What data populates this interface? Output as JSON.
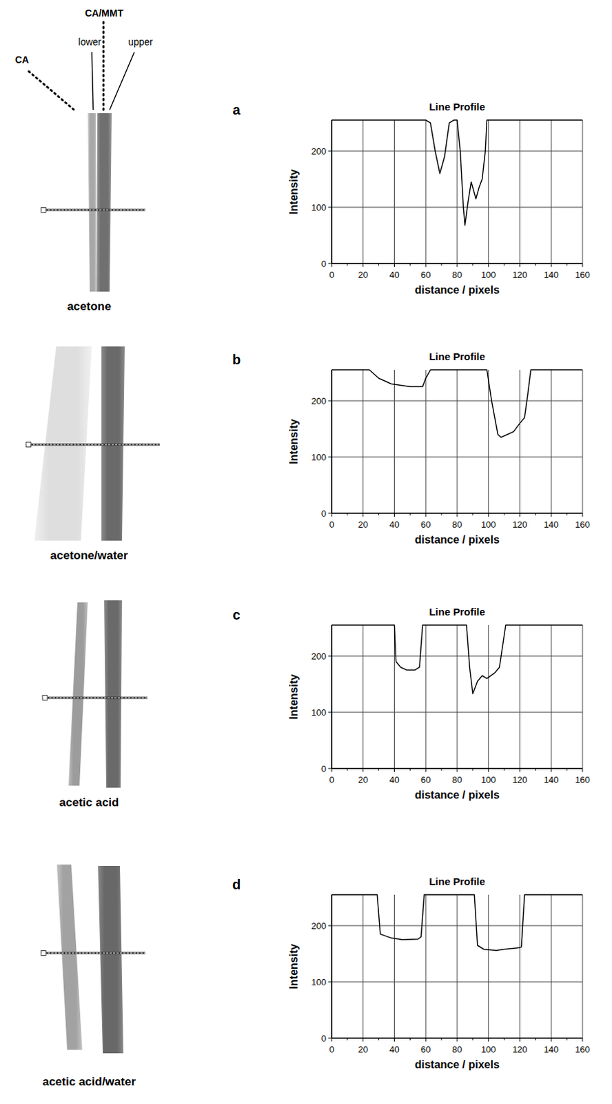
{
  "chart_data": [
    {
      "type": "line",
      "title": "Line Profile",
      "x_label": "distance / pixels",
      "y_label": "Intensity",
      "annotations": [
        "a"
      ],
      "xlim": [
        0,
        160
      ],
      "ylim": [
        0,
        255
      ],
      "xticks": [
        0,
        20,
        40,
        60,
        80,
        100,
        120,
        140,
        160
      ],
      "yticks": [
        0,
        100,
        200
      ],
      "grid": true,
      "x": [
        0,
        60,
        63,
        66,
        69,
        72,
        75,
        78,
        80,
        82,
        84,
        85,
        87,
        89,
        91,
        92,
        94,
        96,
        98,
        99,
        160
      ],
      "values": [
        255,
        255,
        250,
        200,
        160,
        190,
        250,
        255,
        255,
        200,
        100,
        68,
        110,
        145,
        125,
        115,
        135,
        150,
        200,
        255,
        255
      ],
      "color": "#000000"
    },
    {
      "type": "line",
      "title": "Line Profile",
      "x_label": "distance / pixels",
      "y_label": "Intensity",
      "annotations": [
        "b"
      ],
      "xlim": [
        0,
        160
      ],
      "ylim": [
        0,
        255
      ],
      "xticks": [
        0,
        20,
        40,
        60,
        80,
        100,
        120,
        140,
        160
      ],
      "yticks": [
        0,
        100,
        200
      ],
      "grid": true,
      "x": [
        0,
        24,
        30,
        38,
        50,
        58,
        60,
        63,
        99,
        102,
        106,
        108,
        112,
        116,
        120,
        123,
        125,
        127,
        160
      ],
      "values": [
        255,
        255,
        240,
        230,
        225,
        225,
        240,
        255,
        255,
        200,
        140,
        135,
        140,
        145,
        160,
        170,
        210,
        255,
        255
      ],
      "color": "#000000"
    },
    {
      "type": "line",
      "title": "Line Profile",
      "x_label": "distance / pixels",
      "y_label": "Intensity",
      "annotations": [
        "c"
      ],
      "xlim": [
        0,
        160
      ],
      "ylim": [
        0,
        255
      ],
      "xticks": [
        0,
        20,
        40,
        60,
        80,
        100,
        120,
        140,
        160
      ],
      "yticks": [
        0,
        100,
        200
      ],
      "grid": true,
      "x": [
        0,
        40,
        41,
        44,
        48,
        53,
        56,
        58,
        86,
        88,
        90,
        93,
        96,
        99,
        104,
        107,
        111,
        160
      ],
      "values": [
        255,
        255,
        190,
        180,
        175,
        175,
        180,
        255,
        255,
        180,
        133,
        155,
        165,
        160,
        170,
        180,
        255,
        255
      ],
      "color": "#000000"
    },
    {
      "type": "line",
      "title": "Line Profile",
      "x_label": "distance / pixels",
      "y_label": "Intensity",
      "annotations": [
        "d"
      ],
      "xlim": [
        0,
        160
      ],
      "ylim": [
        0,
        255
      ],
      "xticks": [
        0,
        20,
        40,
        60,
        80,
        100,
        120,
        140,
        160
      ],
      "yticks": [
        0,
        100,
        200
      ],
      "grid": true,
      "x": [
        0,
        29,
        31,
        38,
        45,
        55,
        57,
        59,
        91,
        93,
        97,
        105,
        110,
        118,
        121,
        123,
        160
      ],
      "values": [
        255,
        255,
        185,
        178,
        175,
        176,
        180,
        255,
        255,
        165,
        158,
        156,
        158,
        160,
        162,
        255,
        255
      ],
      "color": "#000000"
    }
  ],
  "images": [
    {
      "caption": "acetone"
    },
    {
      "caption": "acetone/water"
    },
    {
      "caption": "acetic acid"
    },
    {
      "caption": "acetic acid/water"
    }
  ],
  "image_labels": [
    "CA",
    "lower",
    "CA/MMT",
    "upper"
  ]
}
